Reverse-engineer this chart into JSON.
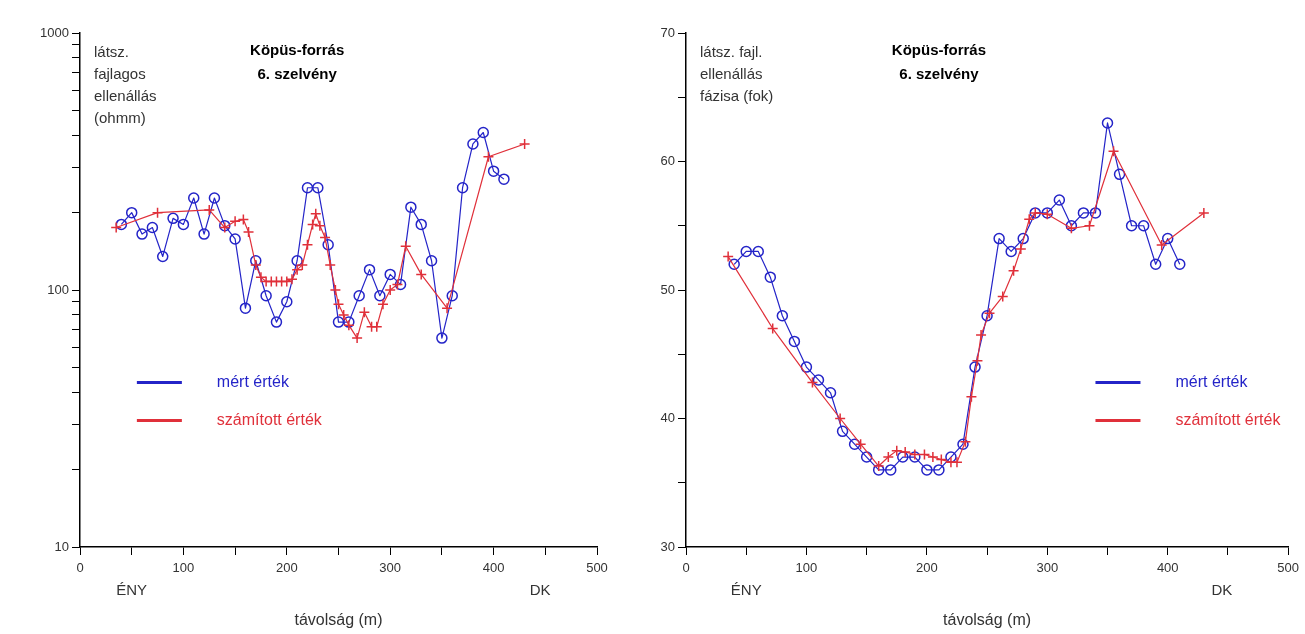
{
  "chart_data": [
    {
      "type": "line",
      "title": "Köpüs-forrás",
      "subtitle": "6. szelvény",
      "xlabel": "távolság (m)",
      "ylabel": "látsz. fajlagos ellenállás (ohmm)",
      "log": "y",
      "legend": "left",
      "grid": false,
      "xlim": [
        0,
        500
      ],
      "xticks": [
        0,
        {
          "value": 50,
          "label": null
        },
        100,
        {
          "value": 150,
          "label": null
        },
        200,
        {
          "value": 250,
          "label": null
        },
        300,
        {
          "value": 350,
          "label": null
        },
        400,
        {
          "value": 450,
          "label": null
        },
        500
      ],
      "ylim": [
        10,
        1000
      ],
      "yticks": [
        10,
        {
          "value": 20,
          "label": null
        },
        {
          "value": 30,
          "label": null
        },
        {
          "value": 40,
          "label": null
        },
        {
          "value": 50,
          "label": null
        },
        {
          "value": 60,
          "label": null
        },
        {
          "value": 70,
          "label": null
        },
        {
          "value": 80,
          "label": null
        },
        {
          "value": 90,
          "label": null
        },
        100,
        {
          "value": 200,
          "label": null
        },
        {
          "value": 300,
          "label": null
        },
        {
          "value": 400,
          "label": null
        },
        {
          "value": 500,
          "label": null
        },
        {
          "value": 600,
          "label": null
        },
        {
          "value": 700,
          "label": null
        },
        {
          "value": 800,
          "label": null
        },
        {
          "value": 900,
          "label": null
        },
        1000
      ],
      "annotations": [
        "ÉNY",
        "DK"
      ],
      "series": [
        {
          "name": "mért érték",
          "color": "#2424c8",
          "marker": "circle",
          "x": [
            40,
            50,
            60,
            70,
            80,
            90,
            100,
            110,
            120,
            130,
            140,
            150,
            160,
            170,
            180,
            190,
            200,
            210,
            220,
            230,
            240,
            250,
            260,
            270,
            280,
            290,
            300,
            310,
            320,
            330,
            340,
            350,
            360,
            370,
            380,
            390,
            400,
            410
          ],
          "values": [
            180,
            200,
            165,
            175,
            135,
            190,
            180,
            228,
            165,
            228,
            178,
            158,
            85,
            130,
            95,
            75,
            90,
            130,
            250,
            250,
            150,
            75,
            75,
            95,
            120,
            95,
            115,
            105,
            210,
            180,
            130,
            65,
            95,
            250,
            370,
            410,
            290,
            270
          ]
        },
        {
          "name": "számított érték",
          "color": "#e0303a",
          "marker": "cross",
          "x": [
            35,
            75,
            125,
            140,
            150,
            158,
            163,
            170,
            175,
            180,
            185,
            190,
            195,
            200,
            205,
            210,
            215,
            220,
            225,
            228,
            232,
            237,
            242,
            247,
            250,
            255,
            260,
            268,
            275,
            282,
            287,
            293,
            300,
            307,
            315,
            330,
            355,
            395,
            430
          ],
          "values": [
            175,
            200,
            205,
            175,
            185,
            188,
            168,
            125,
            112,
            108,
            108,
            108,
            108,
            108,
            110,
            120,
            125,
            150,
            180,
            198,
            178,
            160,
            125,
            100,
            88,
            80,
            73,
            65,
            82,
            72,
            72,
            88,
            100,
            105,
            148,
            115,
            85,
            330,
            370
          ]
        }
      ]
    },
    {
      "type": "line",
      "title": "Köpüs-forrás",
      "subtitle": "6. szelvény",
      "xlabel": "távolság (m)",
      "ylabel": "látsz. fajl. ellenállás fázisa (fok)",
      "legend": "right",
      "grid": false,
      "xlim": [
        0,
        500
      ],
      "xticks": [
        0,
        {
          "value": 50,
          "label": null
        },
        100,
        {
          "value": 150,
          "label": null
        },
        200,
        {
          "value": 250,
          "label": null
        },
        300,
        {
          "value": 350,
          "label": null
        },
        400,
        {
          "value": 450,
          "label": null
        },
        500
      ],
      "ylim": [
        30,
        70
      ],
      "yticks": [
        30,
        {
          "value": 35,
          "label": null
        },
        40,
        {
          "value": 45,
          "label": null
        },
        50,
        {
          "value": 55,
          "label": null
        },
        60,
        {
          "value": 65,
          "label": null
        },
        70
      ],
      "annotations": [
        "ÉNY",
        "DK"
      ],
      "series": [
        {
          "name": "mért érték",
          "color": "#2424c8",
          "marker": "circle",
          "x": [
            40,
            50,
            60,
            70,
            80,
            90,
            100,
            110,
            120,
            130,
            140,
            150,
            160,
            170,
            180,
            190,
            200,
            210,
            220,
            230,
            240,
            250,
            260,
            270,
            280,
            290,
            300,
            310,
            320,
            330,
            340,
            350,
            360,
            370,
            380,
            390,
            400,
            410
          ],
          "values": [
            52,
            53,
            53,
            51,
            48,
            46,
            44,
            43,
            42,
            39,
            38,
            37,
            36,
            36,
            37,
            37,
            36,
            36,
            37,
            38,
            44,
            48,
            54,
            53,
            54,
            56,
            56,
            57,
            55,
            56,
            56,
            63,
            59,
            55,
            55,
            52,
            54,
            52
          ]
        },
        {
          "name": "számított érték",
          "color": "#e0303a",
          "marker": "cross",
          "x": [
            35,
            72,
            105,
            128,
            145,
            160,
            168,
            175,
            182,
            190,
            198,
            205,
            212,
            220,
            225,
            232,
            237,
            242,
            245,
            252,
            263,
            272,
            278,
            285,
            290,
            300,
            320,
            335,
            355,
            395,
            430
          ],
          "values": [
            52.6,
            47,
            42.8,
            40,
            38,
            36.3,
            37,
            37.5,
            37.4,
            37.2,
            37.2,
            37,
            36.8,
            36.6,
            36.6,
            38.2,
            41.7,
            44.5,
            46.5,
            48.2,
            49.5,
            51.5,
            53.2,
            55.5,
            56,
            55.9,
            54.8,
            55,
            60.8,
            53.5,
            56
          ]
        }
      ]
    }
  ]
}
